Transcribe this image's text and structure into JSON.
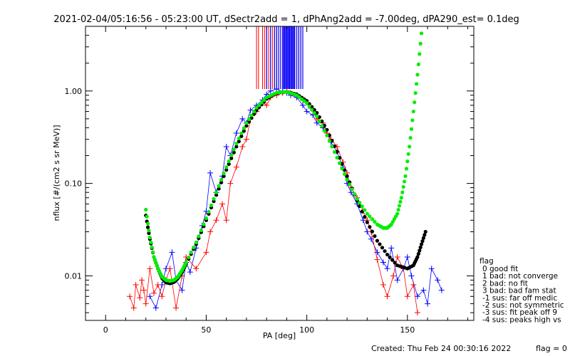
{
  "chart_data": {
    "type": "scatter",
    "title": "2021-02-04/05:16:56 - 05:23:00 UT, dSectr2add = 1, dPhAng2add = -7.00deg, dPA290_est=   0.1deg",
    "xlabel": "PA [deg]",
    "ylabel": "nflux [#/(cm2 s sr MeV)]",
    "xlim": [
      -10,
      183
    ],
    "ylim": [
      0.0033,
      5.0
    ],
    "yscale": "log",
    "x_ticks": [
      {
        "value": 0,
        "label": "0"
      },
      {
        "value": 50,
        "label": "50"
      },
      {
        "value": 100,
        "label": "100"
      },
      {
        "value": 150,
        "label": "150"
      }
    ],
    "y_ticks": [
      {
        "value": 0.01,
        "label": "0.01"
      },
      {
        "value": 0.1,
        "label": "0.10"
      },
      {
        "value": 1.0,
        "label": "1.00"
      }
    ],
    "grid": false,
    "legend": {
      "placement": "right",
      "title": "flag",
      "entries": [
        "0 good fit",
        "1 bad: not converge",
        "2 bad: no fit",
        "3 bad: bad fam stat",
        "-1 sus: far off medic",
        "-2 sus: not symmetric",
        "-3 sus: fit peak off 9",
        "-4 sus: peaks high vs"
      ]
    },
    "series": [
      {
        "name": "",
        "color": "#0000ff",
        "marker": "plus",
        "points": [
          [
            22,
            0.006
          ],
          [
            25,
            0.0045
          ],
          [
            28,
            0.008
          ],
          [
            30,
            0.012
          ],
          [
            33,
            0.018
          ],
          [
            35,
            0.009
          ],
          [
            38,
            0.007
          ],
          [
            40,
            0.014
          ],
          [
            42,
            0.011
          ],
          [
            45,
            0.02
          ],
          [
            48,
            0.035
          ],
          [
            50,
            0.05
          ],
          [
            52,
            0.13
          ],
          [
            55,
            0.08
          ],
          [
            58,
            0.12
          ],
          [
            60,
            0.25
          ],
          [
            62,
            0.2
          ],
          [
            65,
            0.35
          ],
          [
            68,
            0.5
          ],
          [
            70,
            0.45
          ],
          [
            72,
            0.62
          ],
          [
            75,
            0.7
          ],
          [
            78,
            0.8
          ],
          [
            80,
            0.92
          ],
          [
            82,
            1.0
          ],
          [
            85,
            1.05
          ],
          [
            88,
            0.98
          ],
          [
            90,
            0.95
          ],
          [
            92,
            0.9
          ],
          [
            95,
            0.85
          ],
          [
            98,
            0.7
          ],
          [
            100,
            0.6
          ],
          [
            103,
            0.55
          ],
          [
            105,
            0.45
          ],
          [
            108,
            0.4
          ],
          [
            110,
            0.35
          ],
          [
            112,
            0.28
          ],
          [
            115,
            0.22
          ],
          [
            118,
            0.15
          ],
          [
            120,
            0.1
          ],
          [
            122,
            0.08
          ],
          [
            125,
            0.06
          ],
          [
            128,
            0.04
          ],
          [
            130,
            0.03
          ],
          [
            132,
            0.025
          ],
          [
            135,
            0.018
          ],
          [
            138,
            0.014
          ],
          [
            140,
            0.012
          ],
          [
            142,
            0.02
          ],
          [
            145,
            0.009
          ],
          [
            148,
            0.012
          ],
          [
            150,
            0.016
          ],
          [
            152,
            0.01
          ],
          [
            155,
            0.006
          ],
          [
            158,
            0.007
          ],
          [
            160,
            0.005
          ],
          [
            162,
            0.012
          ],
          [
            165,
            0.009
          ],
          [
            167,
            0.007
          ]
        ]
      },
      {
        "name": "",
        "color": "#ff0000",
        "marker": "plus",
        "points": [
          [
            12,
            0.006
          ],
          [
            14,
            0.0045
          ],
          [
            15,
            0.008
          ],
          [
            17,
            0.0058
          ],
          [
            18,
            0.009
          ],
          [
            19,
            0.007
          ],
          [
            20,
            0.005
          ],
          [
            22,
            0.012
          ],
          [
            24,
            0.0065
          ],
          [
            26,
            0.008
          ],
          [
            28,
            0.006
          ],
          [
            30,
            0.009
          ],
          [
            32,
            0.012
          ],
          [
            35,
            0.0045
          ],
          [
            38,
            0.01
          ],
          [
            40,
            0.016
          ],
          [
            45,
            0.012
          ],
          [
            50,
            0.018
          ],
          [
            52,
            0.03
          ],
          [
            55,
            0.04
          ],
          [
            58,
            0.06
          ],
          [
            60,
            0.04
          ],
          [
            62,
            0.1
          ],
          [
            65,
            0.15
          ],
          [
            68,
            0.25
          ],
          [
            70,
            0.3
          ],
          [
            72,
            0.5
          ],
          [
            75,
            0.6
          ],
          [
            78,
            0.75
          ],
          [
            80,
            0.7
          ],
          [
            82,
            0.85
          ],
          [
            85,
            0.9
          ],
          [
            88,
            0.95
          ],
          [
            90,
            1.0
          ],
          [
            92,
            0.95
          ],
          [
            95,
            0.9
          ],
          [
            98,
            0.8
          ],
          [
            100,
            0.75
          ],
          [
            102,
            0.65
          ],
          [
            105,
            0.5
          ],
          [
            108,
            0.45
          ],
          [
            110,
            0.35
          ],
          [
            112,
            0.3
          ],
          [
            115,
            0.25
          ],
          [
            118,
            0.17
          ],
          [
            120,
            0.13
          ],
          [
            122,
            0.09
          ],
          [
            125,
            0.07
          ],
          [
            128,
            0.05
          ],
          [
            130,
            0.04
          ],
          [
            132,
            0.03
          ],
          [
            135,
            0.015
          ],
          [
            138,
            0.008
          ],
          [
            140,
            0.006
          ],
          [
            143,
            0.01
          ],
          [
            145,
            0.016
          ],
          [
            148,
            0.012
          ],
          [
            150,
            0.006
          ],
          [
            153,
            0.008
          ],
          [
            155,
            0.004
          ]
        ]
      },
      {
        "name": "",
        "color": "#000000",
        "marker": "dot",
        "points": [
          [
            20,
            0.045
          ],
          [
            22,
            0.025
          ],
          [
            24,
            0.016
          ],
          [
            26,
            0.012
          ],
          [
            28,
            0.0095
          ],
          [
            30,
            0.0085
          ],
          [
            32,
            0.0083
          ],
          [
            34,
            0.0086
          ],
          [
            36,
            0.0095
          ],
          [
            38,
            0.011
          ],
          [
            40,
            0.0135
          ],
          [
            45,
            0.022
          ],
          [
            50,
            0.04
          ],
          [
            55,
            0.075
          ],
          [
            60,
            0.14
          ],
          [
            65,
            0.25
          ],
          [
            70,
            0.42
          ],
          [
            75,
            0.62
          ],
          [
            80,
            0.82
          ],
          [
            85,
            0.95
          ],
          [
            90,
            0.98
          ],
          [
            95,
            0.92
          ],
          [
            100,
            0.78
          ],
          [
            105,
            0.58
          ],
          [
            110,
            0.38
          ],
          [
            115,
            0.22
          ],
          [
            120,
            0.12
          ],
          [
            125,
            0.065
          ],
          [
            130,
            0.038
          ],
          [
            135,
            0.024
          ],
          [
            140,
            0.017
          ],
          [
            145,
            0.013
          ],
          [
            150,
            0.012
          ],
          [
            153,
            0.013
          ],
          [
            155,
            0.016
          ],
          [
            157,
            0.022
          ],
          [
            159,
            0.03
          ]
        ]
      },
      {
        "name": "",
        "color": "#00ee00",
        "marker": "dot",
        "points": [
          [
            20,
            0.052
          ],
          [
            22,
            0.026
          ],
          [
            24,
            0.016
          ],
          [
            26,
            0.012
          ],
          [
            28,
            0.0098
          ],
          [
            30,
            0.009
          ],
          [
            32,
            0.0088
          ],
          [
            34,
            0.009
          ],
          [
            36,
            0.0098
          ],
          [
            38,
            0.0115
          ],
          [
            40,
            0.014
          ],
          [
            45,
            0.023
          ],
          [
            50,
            0.042
          ],
          [
            55,
            0.08
          ],
          [
            60,
            0.15
          ],
          [
            65,
            0.27
          ],
          [
            70,
            0.45
          ],
          [
            75,
            0.66
          ],
          [
            80,
            0.85
          ],
          [
            85,
            0.96
          ],
          [
            90,
            0.98
          ],
          [
            95,
            0.9
          ],
          [
            100,
            0.74
          ],
          [
            105,
            0.53
          ],
          [
            110,
            0.33
          ],
          [
            115,
            0.19
          ],
          [
            120,
            0.11
          ],
          [
            125,
            0.068
          ],
          [
            130,
            0.047
          ],
          [
            135,
            0.036
          ],
          [
            138,
            0.033
          ],
          [
            140,
            0.033
          ],
          [
            142,
            0.036
          ],
          [
            145,
            0.047
          ],
          [
            147,
            0.07
          ],
          [
            149,
            0.12
          ],
          [
            151,
            0.25
          ],
          [
            153,
            0.6
          ],
          [
            155,
            1.5
          ],
          [
            157,
            4.2
          ]
        ]
      }
    ],
    "pa_lines": {
      "red": [
        75,
        76,
        78,
        79,
        80,
        81,
        82,
        83,
        84,
        85,
        86,
        87,
        88,
        89,
        90,
        91,
        92,
        93,
        94,
        95,
        96,
        97,
        98
      ],
      "blue": [
        80,
        82,
        84,
        85,
        86,
        87,
        88,
        88.5,
        89,
        89.5,
        90,
        90.5,
        91,
        91.5,
        92,
        92.5,
        93,
        93.5,
        94,
        95,
        96,
        97,
        98
      ]
    }
  },
  "footer": {
    "created": "Created: Thu Feb 24 00:30:16 2022",
    "flag": "flag = 0"
  }
}
